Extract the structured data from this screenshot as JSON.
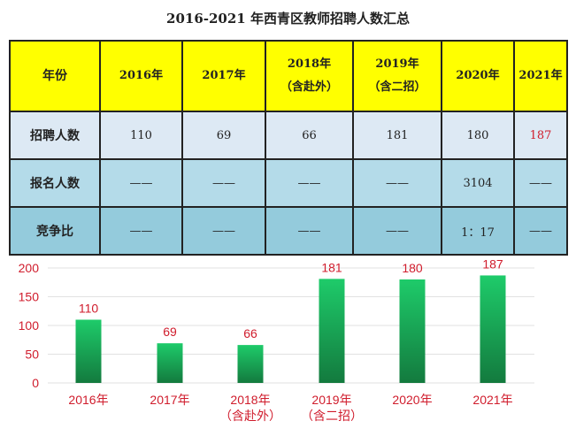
{
  "title": "2016-2021 年西青区教师招聘人数汇总",
  "table": {
    "header_label": "年份",
    "years": [
      [
        "2016年",
        ""
      ],
      [
        "2017年",
        ""
      ],
      [
        "2018年",
        "（含赴外）"
      ],
      [
        "2019年",
        "（含二招）"
      ],
      [
        "2020年",
        ""
      ],
      [
        "2021年",
        ""
      ]
    ],
    "rows": [
      {
        "label": "招聘人数",
        "values": [
          "110",
          "69",
          "66",
          "181",
          "180",
          "187"
        ]
      },
      {
        "label": "报名人数",
        "values": [
          "——",
          "——",
          "——",
          "——",
          "3104",
          "——"
        ]
      },
      {
        "label": "竞争比",
        "values": [
          "——",
          "——",
          "——",
          "——",
          "1：17",
          "——"
        ]
      }
    ],
    "highlight_color": "#d01c2c"
  },
  "chart_data": {
    "type": "bar",
    "categories": [
      [
        "2016年",
        ""
      ],
      [
        "2017年",
        ""
      ],
      [
        "2018年",
        "（含赴外）"
      ],
      [
        "2019年",
        "（含二招）"
      ],
      [
        "2020年",
        ""
      ],
      [
        "2021年",
        ""
      ]
    ],
    "values": [
      110,
      69,
      66,
      181,
      180,
      187
    ],
    "ylim": [
      0,
      200
    ],
    "yticks": [
      0,
      50,
      100,
      150,
      200
    ],
    "grid": true,
    "bar_color": [
      "#1ecb6a",
      "#137a3e"
    ],
    "label_color": "#d01c2c"
  }
}
